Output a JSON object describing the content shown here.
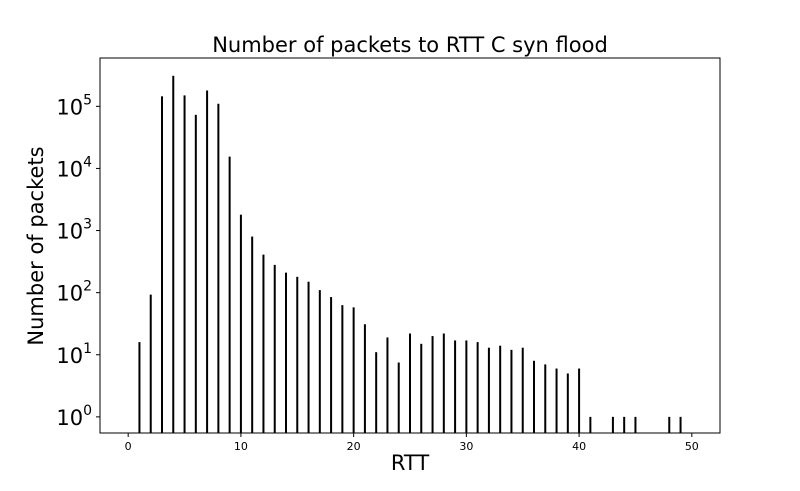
{
  "chart_data": {
    "type": "bar",
    "title": "Number of packets to RTT C syn flood",
    "xlabel": "RTT",
    "ylabel": "Number of packets",
    "xlim": [
      -2.5,
      52.5
    ],
    "ylim": [
      0.55,
      600000
    ],
    "yscale": "log",
    "grid": false,
    "bar_color": "#000000",
    "xticks": [
      0,
      10,
      20,
      30,
      40,
      50
    ],
    "yticks": [
      {
        "value": 1,
        "base": "10",
        "exp": "0"
      },
      {
        "value": 10,
        "base": "10",
        "exp": "1"
      },
      {
        "value": 100,
        "base": "10",
        "exp": "2"
      },
      {
        "value": 1000,
        "base": "10",
        "exp": "3"
      },
      {
        "value": 10000,
        "base": "10",
        "exp": "4"
      },
      {
        "value": 100000,
        "base": "10",
        "exp": "5"
      }
    ],
    "series": [
      {
        "x": [
          1,
          2,
          3,
          4,
          5,
          6,
          7,
          8,
          9,
          10,
          11,
          12,
          13,
          14,
          15,
          16,
          17,
          18,
          19,
          20,
          21,
          22,
          23,
          24,
          25,
          26,
          27,
          28,
          29,
          30,
          31,
          32,
          33,
          34,
          35,
          36,
          37,
          38,
          39,
          40,
          41,
          43,
          44,
          45,
          48,
          49
        ],
        "values": [
          16,
          93,
          145000,
          310000,
          150000,
          73000,
          180000,
          110000,
          15500,
          1800,
          800,
          410,
          280,
          210,
          180,
          150,
          110,
          85,
          63,
          58,
          31,
          11,
          19,
          7.5,
          22,
          15,
          20,
          22,
          17,
          17,
          16,
          13,
          14,
          12,
          13,
          8,
          7,
          6,
          5,
          6,
          1,
          1,
          1,
          1,
          1,
          1
        ]
      }
    ]
  }
}
